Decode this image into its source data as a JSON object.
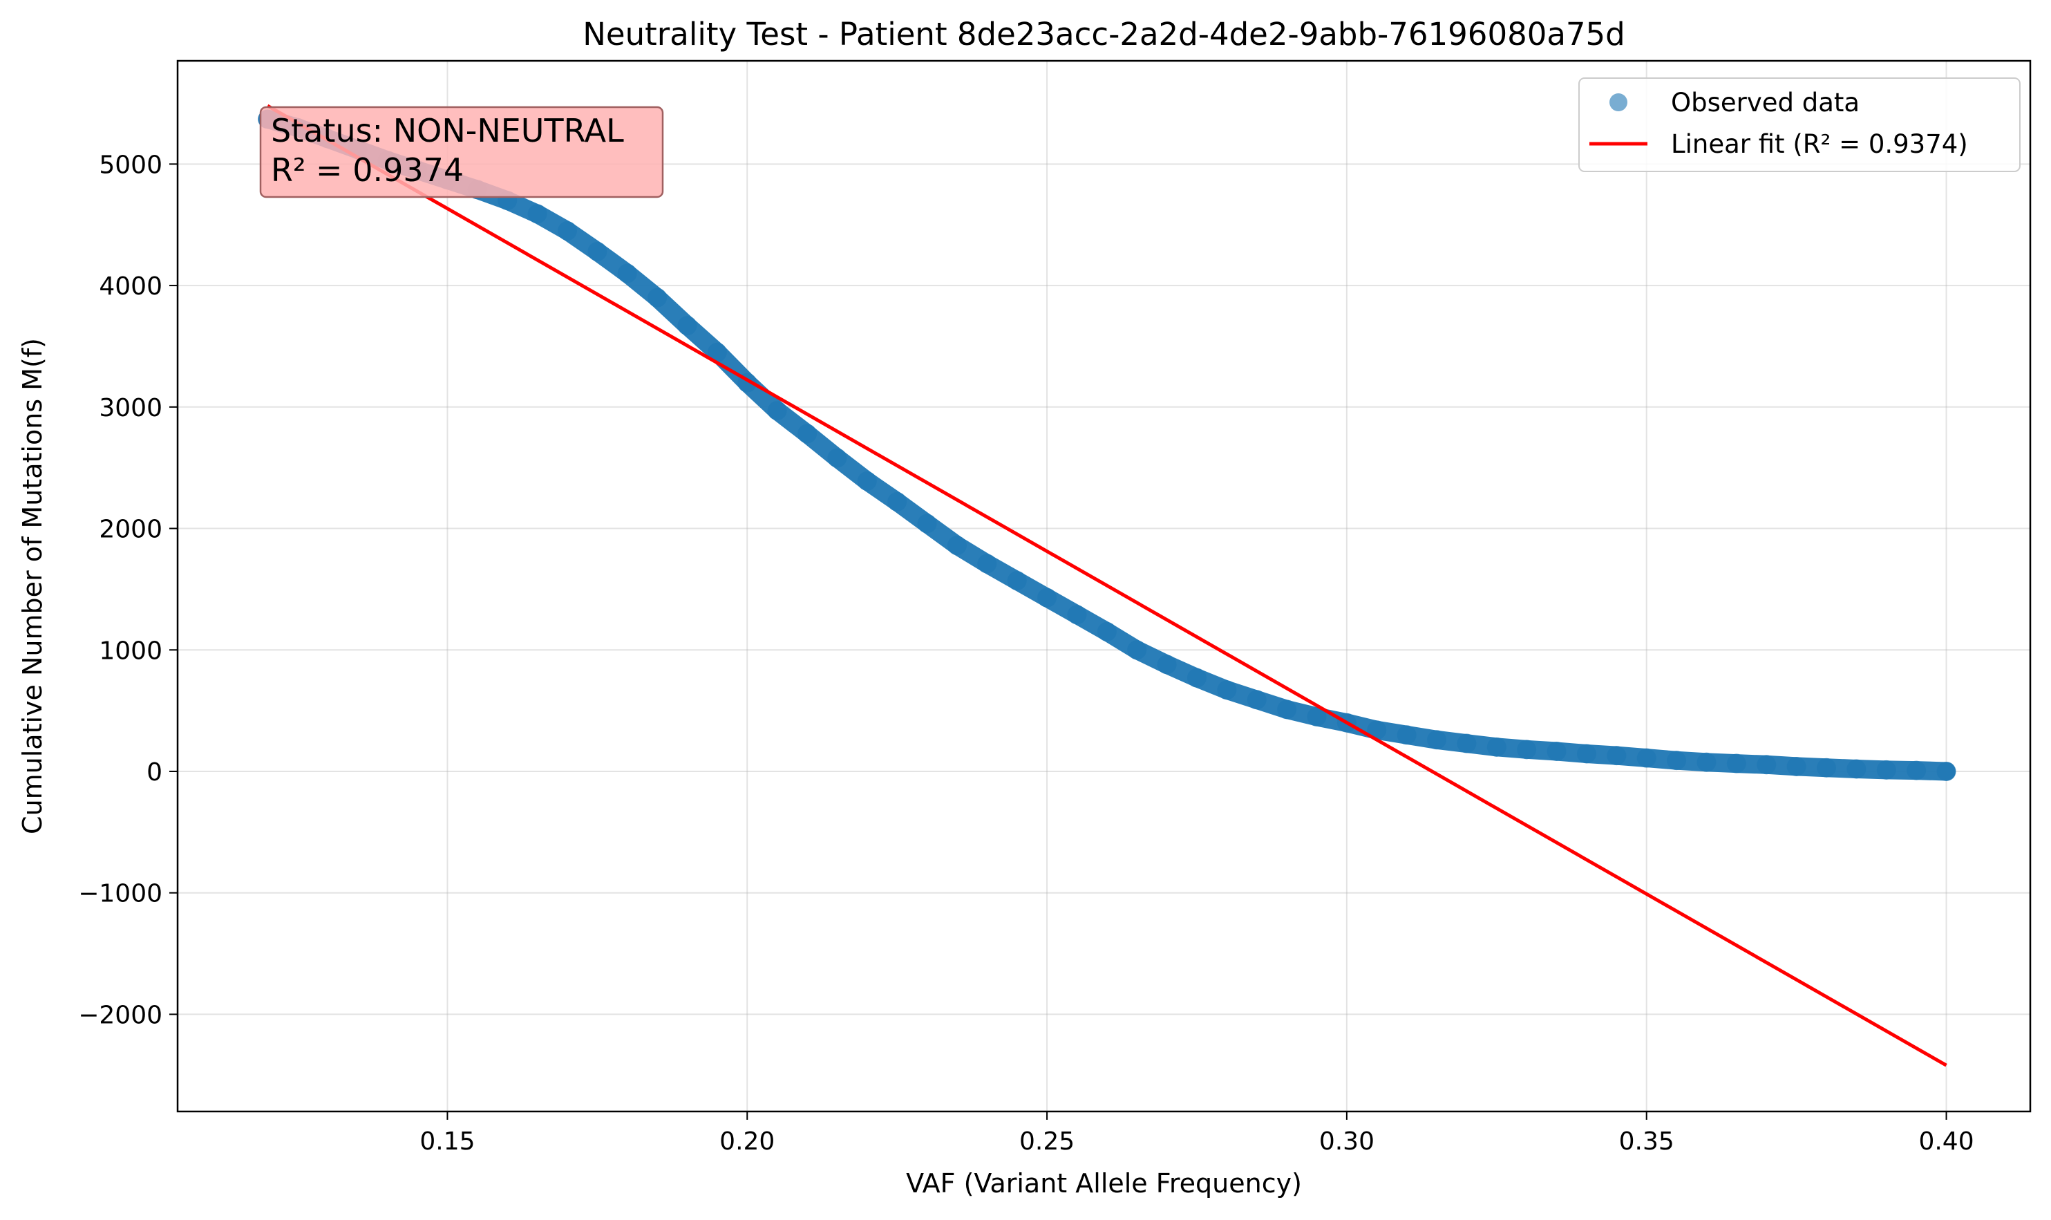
{
  "chart_data": {
    "type": "scatter",
    "title": "Neutrality Test - Patient 8de23acc-2a2d-4de2-9abb-76196080a75d",
    "xlabel": "VAF (Variant Allele Frequency)",
    "ylabel": "Cumulative Number of Mutations M(f)",
    "xlim": [
      0.105,
      0.414
    ],
    "ylim": [
      -2800,
      5850
    ],
    "x_ticks": [
      0.15,
      0.2,
      0.25,
      0.3,
      0.35,
      0.4
    ],
    "x_tick_labels": [
      "0.15",
      "0.20",
      "0.25",
      "0.30",
      "0.35",
      "0.40"
    ],
    "y_ticks": [
      -2000,
      -1000,
      0,
      1000,
      2000,
      3000,
      4000,
      5000
    ],
    "y_tick_labels": [
      "−2000",
      "−1000",
      "0",
      "1000",
      "2000",
      "3000",
      "4000",
      "5000"
    ],
    "grid": true,
    "legend_position": "top-right",
    "series": [
      {
        "name": "Observed data",
        "kind": "scatter",
        "color": "#1f77b4",
        "points": [
          [
            0.12,
            5370
          ],
          [
            0.125,
            5300
          ],
          [
            0.13,
            5210
          ],
          [
            0.135,
            5120
          ],
          [
            0.14,
            5030
          ],
          [
            0.145,
            4950
          ],
          [
            0.15,
            4870
          ],
          [
            0.155,
            4790
          ],
          [
            0.16,
            4700
          ],
          [
            0.165,
            4590
          ],
          [
            0.17,
            4450
          ],
          [
            0.175,
            4280
          ],
          [
            0.18,
            4100
          ],
          [
            0.185,
            3900
          ],
          [
            0.19,
            3670
          ],
          [
            0.195,
            3450
          ],
          [
            0.2,
            3200
          ],
          [
            0.205,
            2970
          ],
          [
            0.21,
            2780
          ],
          [
            0.215,
            2580
          ],
          [
            0.22,
            2390
          ],
          [
            0.225,
            2220
          ],
          [
            0.23,
            2040
          ],
          [
            0.235,
            1860
          ],
          [
            0.24,
            1710
          ],
          [
            0.245,
            1570
          ],
          [
            0.25,
            1430
          ],
          [
            0.255,
            1290
          ],
          [
            0.26,
            1150
          ],
          [
            0.265,
            1000
          ],
          [
            0.27,
            880
          ],
          [
            0.275,
            770
          ],
          [
            0.28,
            670
          ],
          [
            0.285,
            590
          ],
          [
            0.29,
            510
          ],
          [
            0.295,
            450
          ],
          [
            0.3,
            400
          ],
          [
            0.305,
            340
          ],
          [
            0.31,
            300
          ],
          [
            0.315,
            260
          ],
          [
            0.32,
            230
          ],
          [
            0.325,
            200
          ],
          [
            0.33,
            180
          ],
          [
            0.335,
            165
          ],
          [
            0.34,
            145
          ],
          [
            0.345,
            130
          ],
          [
            0.35,
            110
          ],
          [
            0.355,
            90
          ],
          [
            0.36,
            75
          ],
          [
            0.365,
            65
          ],
          [
            0.37,
            55
          ],
          [
            0.375,
            40
          ],
          [
            0.38,
            30
          ],
          [
            0.385,
            20
          ],
          [
            0.39,
            12
          ],
          [
            0.395,
            8
          ],
          [
            0.4,
            0
          ]
        ]
      },
      {
        "name": "Linear fit (R² = 0.9374)",
        "kind": "line",
        "color": "#ff0000",
        "points": [
          [
            0.12,
            5480
          ],
          [
            0.4,
            -2420
          ]
        ]
      }
    ],
    "annotation": {
      "lines": [
        "Status: NON-NEUTRAL",
        "R² = 0.9374"
      ],
      "background": "#ffb3b3",
      "border": "#a06060"
    }
  }
}
